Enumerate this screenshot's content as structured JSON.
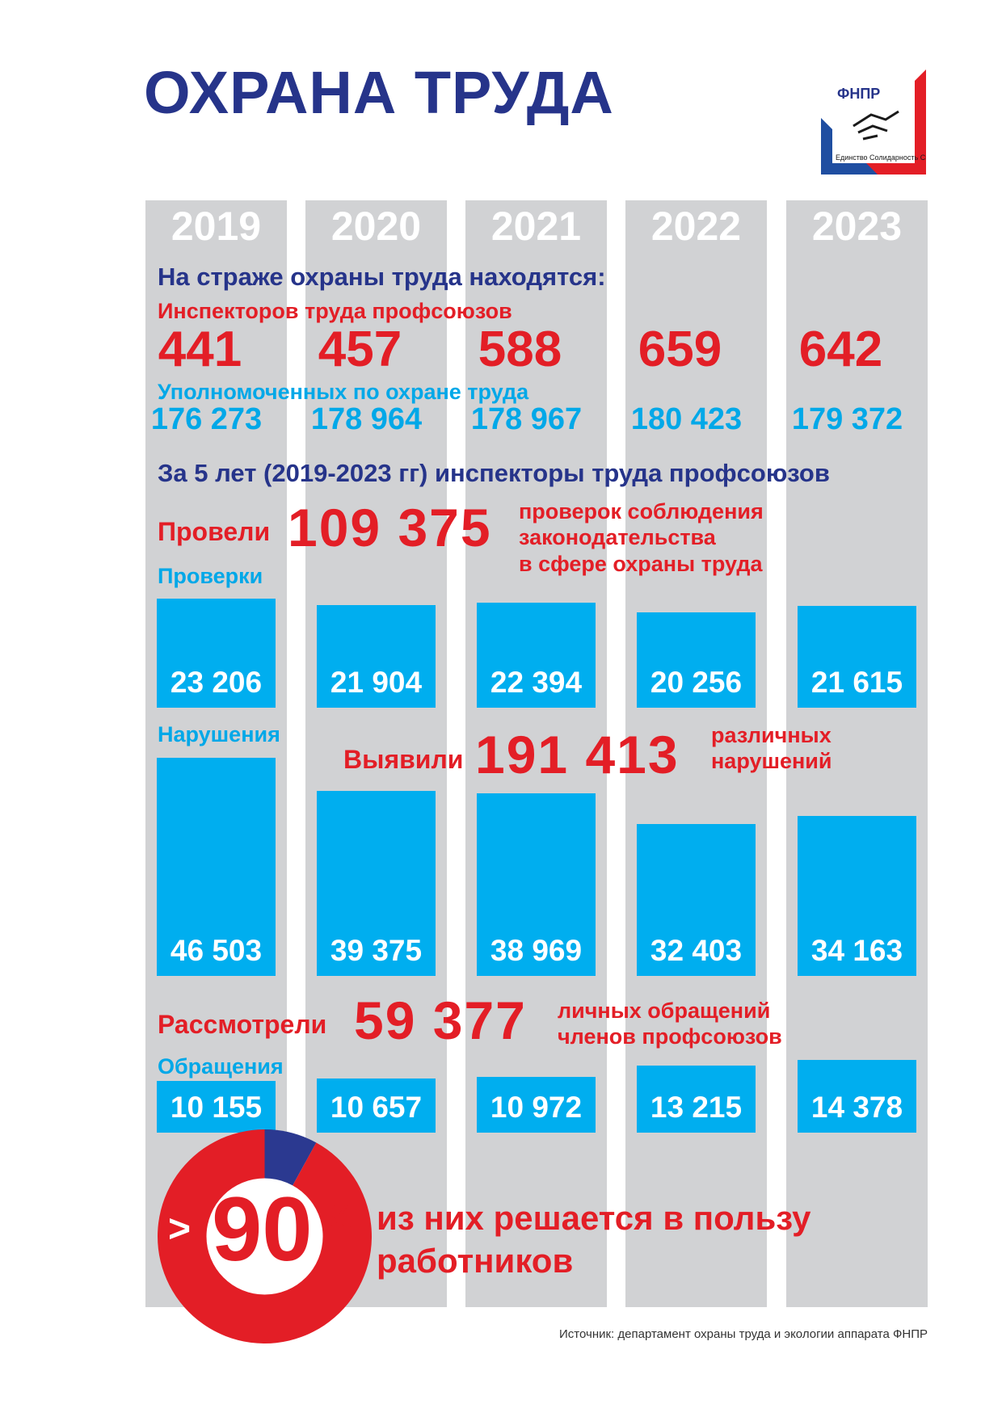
{
  "title": "ОХРАНА ТРУДА",
  "logo": {
    "name": "ФНПР",
    "motto": "Единство Солидарность Справедливость",
    "colors": {
      "white": "#ffffff",
      "blue": "#1f4ea1",
      "red": "#e31e26"
    }
  },
  "years": [
    "2019",
    "2020",
    "2021",
    "2022",
    "2023"
  ],
  "guard_heading": "На страже охраны труда находятся:",
  "inspectors": {
    "label": "Инспекторов труда профсоюзов",
    "values": [
      "441",
      "457",
      "588",
      "659",
      "642"
    ]
  },
  "representatives": {
    "label": "Уполномоченных по охране труда",
    "values": [
      "176 273",
      "178 964",
      "178 967",
      "180 423",
      "179 372"
    ]
  },
  "summary_heading": "За 5 лет (2019-2023 гг) инспекторы труда профсоюзов",
  "inspections_total": {
    "lead": "Провели",
    "value": "109 375",
    "note_lines": [
      "проверок соблюдения",
      "законодательства",
      "в сфере охраны труда"
    ]
  },
  "violations_total": {
    "lead": "Выявили",
    "value": "191 413",
    "note_lines": [
      "различных",
      "нарушений"
    ]
  },
  "appeals_total": {
    "lead": "Рассмотрели",
    "value": "59 377",
    "note_lines": [
      "личных обращений",
      "членов профсоюзов"
    ]
  },
  "share": {
    "prefix": ">",
    "value": "90",
    "unit": "%",
    "text_lines": [
      "из них решается в пользу",
      "работников"
    ],
    "percent": 92
  },
  "source": "Источник: департамент охраны труда и экологии аппарата ФНПР",
  "colors": {
    "title_blue": "#26348a",
    "red": "#e31e26",
    "sky_blue": "#00aeef",
    "column_grey": "#d1d2d4",
    "donut_blue": "#2b3990"
  },
  "chart_data": [
    {
      "type": "bar",
      "title": "Проверки",
      "categories": [
        "2019",
        "2020",
        "2021",
        "2022",
        "2023"
      ],
      "values": [
        23206,
        21904,
        22394,
        20256,
        21615
      ],
      "value_labels": [
        "23 206",
        "21 904",
        "22 394",
        "20 256",
        "21 615"
      ]
    },
    {
      "type": "bar",
      "title": "Нарушения",
      "categories": [
        "2019",
        "2020",
        "2021",
        "2022",
        "2023"
      ],
      "values": [
        46503,
        39375,
        38969,
        32403,
        34163
      ],
      "value_labels": [
        "46 503",
        "39 375",
        "38 969",
        "32 403",
        "34 163"
      ]
    },
    {
      "type": "bar",
      "title": "Обращения",
      "categories": [
        "2019",
        "2020",
        "2021",
        "2022",
        "2023"
      ],
      "values": [
        10155,
        10657,
        10972,
        13215,
        14378
      ],
      "value_labels": [
        "10 155",
        "10 657",
        "10 972",
        "13 215",
        "14 378"
      ]
    }
  ]
}
